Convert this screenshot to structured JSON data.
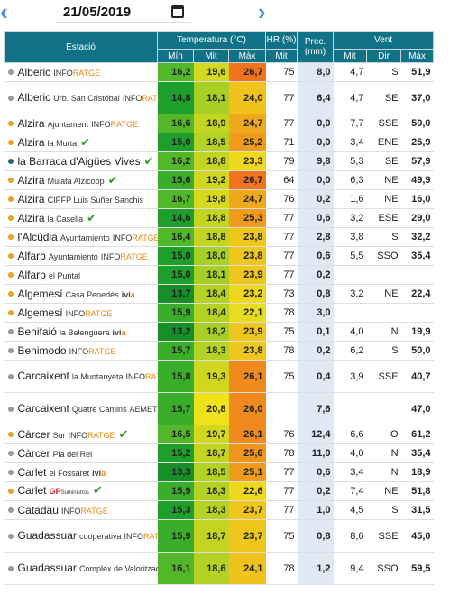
{
  "header": {
    "date": "21/05/2019",
    "prev_icon": "chevron-left-icon",
    "next_icon": "chevron-right-icon",
    "calendar_icon": "calendar-icon"
  },
  "table": {
    "col_estacio": "Estació",
    "col_temp": "Temperatura (°C)",
    "col_hr": "HR (%)",
    "col_prec": "Prec. (mm)",
    "col_vent": "Vent",
    "sub_min": "Mín",
    "sub_mit": "Mit",
    "sub_max": "Màx",
    "sub_hr_mit": "Mit",
    "sub_vent_mit": "Mit",
    "sub_dir": "Dir",
    "sub_vent_max": "Màx",
    "rows": [
      {
        "name": "Alberic",
        "sub": "",
        "brand": "INFORATGE",
        "dot": "#9a9a9a",
        "check": false,
        "tmin": "16,2",
        "tmit": "19,6",
        "tmax": "26,7",
        "hr": "75",
        "prec": "8,0",
        "wmit": "4,7",
        "wdir": "S",
        "wmax": "51,9",
        "cmin": "#52b82a",
        "cmit": "#d4d81e",
        "cmax": "#f1741c",
        "tall": false
      },
      {
        "name": "Alberic",
        "sub": "Urb. San Cristóbal",
        "brand": "INFORATGE",
        "dot": "#9a9a9a",
        "check": false,
        "tmin": "14,8",
        "tmit": "18,1",
        "tmax": "24,0",
        "hr": "77",
        "prec": "6,4",
        "wmit": "4,7",
        "wdir": "SE",
        "wmax": "37,0",
        "cmin": "#1e9e2a",
        "cmit": "#a7cf26",
        "cmax": "#f0c21c",
        "tall": true
      },
      {
        "name": "Alzira",
        "sub": "Ajuntament",
        "brand": "INFORATGE",
        "dot": "#e9a227",
        "check": false,
        "tmin": "16,6",
        "tmit": "18,9",
        "tmax": "24,7",
        "hr": "77",
        "prec": "0,0",
        "wmit": "7,7",
        "wdir": "SSE",
        "wmax": "50,0",
        "cmin": "#52b82a",
        "cmit": "#c3d520",
        "cmax": "#f0a91c",
        "tall": false
      },
      {
        "name": "Alzira",
        "sub": "la Murta",
        "brand": "",
        "dot": "#e9a227",
        "check": true,
        "tmin": "15,0",
        "tmit": "18,5",
        "tmax": "25,2",
        "hr": "71",
        "prec": "0,0",
        "wmit": "3,4",
        "wdir": "ENE",
        "wmax": "25,9",
        "cmin": "#1e9e2a",
        "cmit": "#b4d223",
        "cmax": "#f09b1c",
        "tall": false
      },
      {
        "name": "la Barraca d'Aigües Vives",
        "sub": "",
        "brand": "",
        "dot": "#1d6b7a",
        "check": true,
        "tmin": "16,2",
        "tmit": "18,8",
        "tmax": "23,3",
        "hr": "79",
        "prec": "9,8",
        "wmit": "5,3",
        "wdir": "SE",
        "wmax": "57,9",
        "cmin": "#52b82a",
        "cmit": "#c3d520",
        "cmax": "#eed71c",
        "tall": false
      },
      {
        "name": "Alzira",
        "sub": "Mulata Alzicoop",
        "brand": "",
        "dot": "#e9a227",
        "check": true,
        "tmin": "15,6",
        "tmit": "19,2",
        "tmax": "26,7",
        "hr": "64",
        "prec": "0,0",
        "wmit": "6,3",
        "wdir": "NE",
        "wmax": "49,9",
        "cmin": "#3aad2a",
        "cmit": "#cfd71e",
        "cmax": "#f1741c",
        "tall": false
      },
      {
        "name": "Alzira",
        "sub": "CIPFP Luis Suñer Sanchis",
        "brand": "",
        "dot": "#e9a227",
        "check": false,
        "tmin": "16,7",
        "tmit": "19,8",
        "tmax": "24,7",
        "hr": "76",
        "prec": "0,2",
        "wmit": "1,6",
        "wdir": "NE",
        "wmax": "16,0",
        "cmin": "#52b82a",
        "cmit": "#d8d81e",
        "cmax": "#f0a91c",
        "tall": false
      },
      {
        "name": "Alzira",
        "sub": "la Casella",
        "brand": "",
        "dot": "#e9a227",
        "check": true,
        "tmin": "14,6",
        "tmit": "18,8",
        "tmax": "25,3",
        "hr": "77",
        "prec": "0,6",
        "wmit": "3,2",
        "wdir": "ESE",
        "wmax": "29,0",
        "cmin": "#1e9e2a",
        "cmit": "#c3d520",
        "cmax": "#f09b1c",
        "tall": false
      },
      {
        "name": "l'Alcúdia",
        "sub": "Ayuntamiento",
        "brand": "INFORATGE",
        "dot": "#e9a227",
        "check": false,
        "tmin": "16,4",
        "tmit": "18,8",
        "tmax": "23,8",
        "hr": "77",
        "prec": "2,8",
        "wmit": "3,8",
        "wdir": "S",
        "wmax": "32,2",
        "cmin": "#52b82a",
        "cmit": "#c3d520",
        "cmax": "#efc71c",
        "tall": false
      },
      {
        "name": "Alfarb",
        "sub": "Ayuntamiento",
        "brand": "INFORATGE",
        "dot": "#e9a227",
        "check": false,
        "tmin": "15,0",
        "tmit": "18,0",
        "tmax": "23,8",
        "hr": "77",
        "prec": "0,6",
        "wmit": "5,5",
        "wdir": "SSO",
        "wmax": "35,4",
        "cmin": "#1e9e2a",
        "cmit": "#a7cf26",
        "cmax": "#efc71c",
        "tall": false
      },
      {
        "name": "Alfarp",
        "sub": "el Puntal",
        "brand": "",
        "dot": "#e9a227",
        "check": false,
        "tmin": "15,0",
        "tmit": "18,1",
        "tmax": "23,9",
        "hr": "77",
        "prec": "0,2",
        "wmit": "",
        "wdir": "",
        "wmax": "",
        "cmin": "#1e9e2a",
        "cmit": "#a7cf26",
        "cmax": "#efc71c",
        "tall": false
      },
      {
        "name": "Algemesí",
        "sub": "Casa Penedès",
        "brand": "",
        "ivia": true,
        "dot": "#e9a227",
        "check": false,
        "tmin": "13,7",
        "tmit": "18,4",
        "tmax": "23,2",
        "hr": "73",
        "prec": "0,8",
        "wmit": "3,2",
        "wdir": "NE",
        "wmax": "22,4",
        "cmin": "#168f28",
        "cmit": "#b4d223",
        "cmax": "#eed71c",
        "tall": false
      },
      {
        "name": "Algemesí",
        "sub": "",
        "brand": "INFORATGE",
        "dot": "#e9a227",
        "check": false,
        "tmin": "15,9",
        "tmit": "18,4",
        "tmax": "22,1",
        "hr": "78",
        "prec": "3,0",
        "wmit": "",
        "wdir": "",
        "wmax": "",
        "cmin": "#3aad2a",
        "cmit": "#b4d223",
        "cmax": "#e6dc20",
        "tall": false
      },
      {
        "name": "Benifaió",
        "sub": "la Belenguera",
        "brand": "",
        "ivia": true,
        "dot": "#9a9a9a",
        "check": false,
        "tmin": "13,2",
        "tmit": "18,2",
        "tmax": "23,9",
        "hr": "75",
        "prec": "0,1",
        "wmit": "4,0",
        "wdir": "N",
        "wmax": "19,9",
        "cmin": "#168f28",
        "cmit": "#a7cf26",
        "cmax": "#efc71c",
        "tall": false
      },
      {
        "name": "Benimodo",
        "sub": "",
        "brand": "INFORATGE",
        "dot": "#9a9a9a",
        "check": false,
        "tmin": "15,7",
        "tmit": "18,3",
        "tmax": "23,8",
        "hr": "78",
        "prec": "0,2",
        "wmit": "6,2",
        "wdir": "S",
        "wmax": "50,0",
        "cmin": "#3aad2a",
        "cmit": "#b4d223",
        "cmax": "#efc71c",
        "tall": false
      },
      {
        "name": "Carcaixent",
        "sub": "la Muntanyeta",
        "brand": "INFORATGE",
        "dot": "#9a9a9a",
        "check": false,
        "tmin": "15,8",
        "tmit": "19,3",
        "tmax": "26,1",
        "hr": "75",
        "prec": "0,4",
        "wmit": "3,9",
        "wdir": "SSE",
        "wmax": "40,7",
        "cmin": "#3aad2a",
        "cmit": "#cfd71e",
        "cmax": "#f18a1c",
        "tall": true
      },
      {
        "name": "Carcaixent",
        "sub": "Quatre Camins",
        "brand": "AEMET",
        "dot": "#9a9a9a",
        "check": false,
        "tmin": "15,7",
        "tmit": "20,8",
        "tmax": "26,0",
        "hr": "",
        "prec": "7,6",
        "wmit": "",
        "wdir": "",
        "wmax": "47,0",
        "cmin": "#3aad2a",
        "cmit": "#efe21a",
        "cmax": "#f18a1c",
        "tall": true
      },
      {
        "name": "Càrcer",
        "sub": "Sur",
        "brand": "INFORATGE",
        "dot": "#e9a227",
        "check": true,
        "tmin": "16,5",
        "tmit": "19,7",
        "tmax": "26,1",
        "hr": "76",
        "prec": "12,4",
        "wmit": "6,6",
        "wdir": "O",
        "wmax": "61,2",
        "cmin": "#52b82a",
        "cmit": "#d4d81e",
        "cmax": "#f18a1c",
        "tall": false
      },
      {
        "name": "Càrcer",
        "sub": "Pla del Rei",
        "brand": "",
        "dot": "#9a9a9a",
        "check": false,
        "tmin": "15,2",
        "tmit": "18,7",
        "tmax": "25,6",
        "hr": "78",
        "prec": "11,0",
        "wmit": "4,0",
        "wdir": "N",
        "wmax": "35,4",
        "cmin": "#1e9e2a",
        "cmit": "#c3d520",
        "cmax": "#f0951c",
        "tall": false
      },
      {
        "name": "Carlet",
        "sub": "el Fossaret",
        "brand": "",
        "ivia": true,
        "dot": "#9a9a9a",
        "check": false,
        "tmin": "13,3",
        "tmit": "18,5",
        "tmax": "25,1",
        "hr": "77",
        "prec": "0,6",
        "wmit": "3,4",
        "wdir": "N",
        "wmax": "18,9",
        "cmin": "#168f28",
        "cmit": "#b4d223",
        "cmax": "#f09b1c",
        "tall": false
      },
      {
        "name": "Carlet",
        "sub": "",
        "brand": "",
        "gp": true,
        "dot": "#e9a227",
        "check": true,
        "tmin": "15,9",
        "tmit": "18,3",
        "tmax": "22,6",
        "hr": "77",
        "prec": "0,2",
        "wmit": "7,4",
        "wdir": "NE",
        "wmax": "51,8",
        "cmin": "#3aad2a",
        "cmit": "#b4d223",
        "cmax": "#eed71c",
        "tall": false
      },
      {
        "name": "Catadau",
        "sub": "",
        "brand": "INFORATGE",
        "dot": "#9a9a9a",
        "check": false,
        "tmin": "15,3",
        "tmit": "18,3",
        "tmax": "23,7",
        "hr": "77",
        "prec": "1,0",
        "wmit": "4,5",
        "wdir": "S",
        "wmax": "31,5",
        "cmin": "#1e9e2a",
        "cmit": "#b4d223",
        "cmax": "#efc71c",
        "tall": false
      },
      {
        "name": "Guadassuar",
        "sub": "cooperativa",
        "brand": "INFORATGE",
        "dot": "#9a9a9a",
        "check": false,
        "tmin": "15,9",
        "tmit": "18,7",
        "tmax": "23,7",
        "hr": "75",
        "prec": "0,8",
        "wmit": "8,6",
        "wdir": "SSE",
        "wmax": "45,0",
        "cmin": "#3aad2a",
        "cmit": "#c3d520",
        "cmax": "#efc71c",
        "tall": true
      },
      {
        "name": "Guadassuar",
        "sub": "Complex de Valorització de Residus",
        "brand": "",
        "dot": "#9a9a9a",
        "check": false,
        "tmin": "16,1",
        "tmit": "18,6",
        "tmax": "24,1",
        "hr": "78",
        "prec": "1,2",
        "wmit": "9,4",
        "wdir": "SSO",
        "wmax": "59,5",
        "cmin": "#52b82a",
        "cmit": "#b4d223",
        "cmax": "#f0c21c",
        "tall": true
      }
    ]
  }
}
